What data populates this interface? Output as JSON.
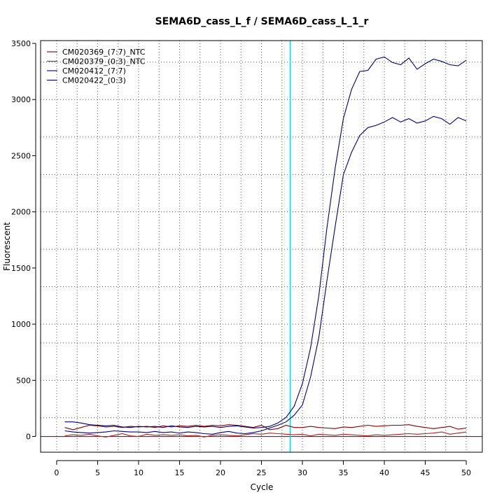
{
  "chart_data": {
    "type": "line",
    "title": "SEMA6D_cass_L_f / SEMA6D_cass_L_1_r",
    "xlabel": "Cycle",
    "ylabel": "Fluorescent",
    "xlim": [
      -1.96,
      51.96
    ],
    "ylim": [
      -140,
      3525
    ],
    "xticks": [
      0,
      5,
      10,
      15,
      20,
      25,
      30,
      35,
      40,
      45,
      50
    ],
    "yticks": [
      0,
      500,
      1000,
      1500,
      2000,
      2500,
      3000,
      3500
    ],
    "x_gridlines": [
      0,
      2.5,
      5,
      7.5,
      10,
      12.5,
      15,
      17.5,
      20,
      22.5,
      25,
      27.5,
      30,
      32.5,
      35,
      37.5,
      40,
      42.5,
      45,
      47.5,
      50
    ],
    "y_gridlines": [
      0,
      166.7,
      500,
      833.3,
      1000,
      1333.3,
      1666.7,
      2000,
      2333.3,
      2666.7,
      3000,
      3333.3
    ],
    "grid": true,
    "legend_position": "top-left",
    "threshold_line": {
      "x": 28.5,
      "color": "#00CCFF"
    },
    "baseline": {
      "y": 0,
      "color": "#CC0000"
    },
    "x": [
      1,
      2,
      3,
      4,
      5,
      6,
      7,
      8,
      9,
      10,
      11,
      12,
      13,
      14,
      15,
      16,
      17,
      18,
      19,
      20,
      21,
      22,
      23,
      24,
      25,
      26,
      27,
      28,
      29,
      30,
      31,
      32,
      33,
      34,
      35,
      36,
      37,
      38,
      39,
      40,
      41,
      42,
      43,
      44,
      45,
      46,
      47,
      48,
      49,
      50
    ],
    "series": [
      {
        "name": "CM020369_(7:7)_NTC",
        "color": "#8B0000",
        "values": [
          80,
          60,
          80,
          100,
          95,
          85,
          90,
          80,
          90,
          85,
          90,
          80,
          95,
          85,
          95,
          90,
          100,
          90,
          100,
          95,
          105,
          100,
          90,
          80,
          100,
          60,
          70,
          100,
          80,
          80,
          90,
          80,
          75,
          70,
          85,
          80,
          90,
          100,
          90,
          95,
          100,
          100,
          105,
          90,
          80,
          70,
          80,
          90,
          65,
          75
        ]
      },
      {
        "name": "CM020379_(0:3)_NTC",
        "color": "#B22222",
        "values": [
          5,
          15,
          10,
          20,
          5,
          -5,
          10,
          25,
          5,
          0,
          20,
          10,
          15,
          10,
          15,
          5,
          10,
          -5,
          10,
          15,
          10,
          5,
          15,
          25,
          20,
          30,
          25,
          20,
          15,
          20,
          5,
          20,
          15,
          10,
          20,
          15,
          10,
          5,
          15,
          10,
          15,
          20,
          25,
          20,
          25,
          30,
          40,
          20,
          30,
          40
        ]
      },
      {
        "name": "CM020412_(7:7)",
        "color": "#00008B",
        "values": [
          50,
          40,
          35,
          30,
          35,
          40,
          50,
          45,
          40,
          40,
          35,
          45,
          35,
          40,
          30,
          40,
          35,
          25,
          20,
          35,
          45,
          30,
          25,
          35,
          50,
          75,
          100,
          130,
          190,
          280,
          530,
          880,
          1390,
          1870,
          2330,
          2530,
          2680,
          2750,
          2770,
          2800,
          2840,
          2800,
          2830,
          2790,
          2810,
          2850,
          2830,
          2780,
          2840,
          2810
        ]
      },
      {
        "name": "CM020422_(0:3)",
        "color": "#000080",
        "values": [
          130,
          130,
          120,
          105,
          100,
          95,
          100,
          85,
          80,
          90,
          85,
          90,
          80,
          95,
          85,
          80,
          90,
          85,
          90,
          80,
          90,
          95,
          85,
          75,
          80,
          90,
          120,
          170,
          270,
          470,
          790,
          1250,
          1860,
          2390,
          2830,
          3090,
          3250,
          3260,
          3360,
          3380,
          3330,
          3310,
          3370,
          3270,
          3320,
          3360,
          3340,
          3310,
          3300,
          3350
        ]
      }
    ]
  }
}
